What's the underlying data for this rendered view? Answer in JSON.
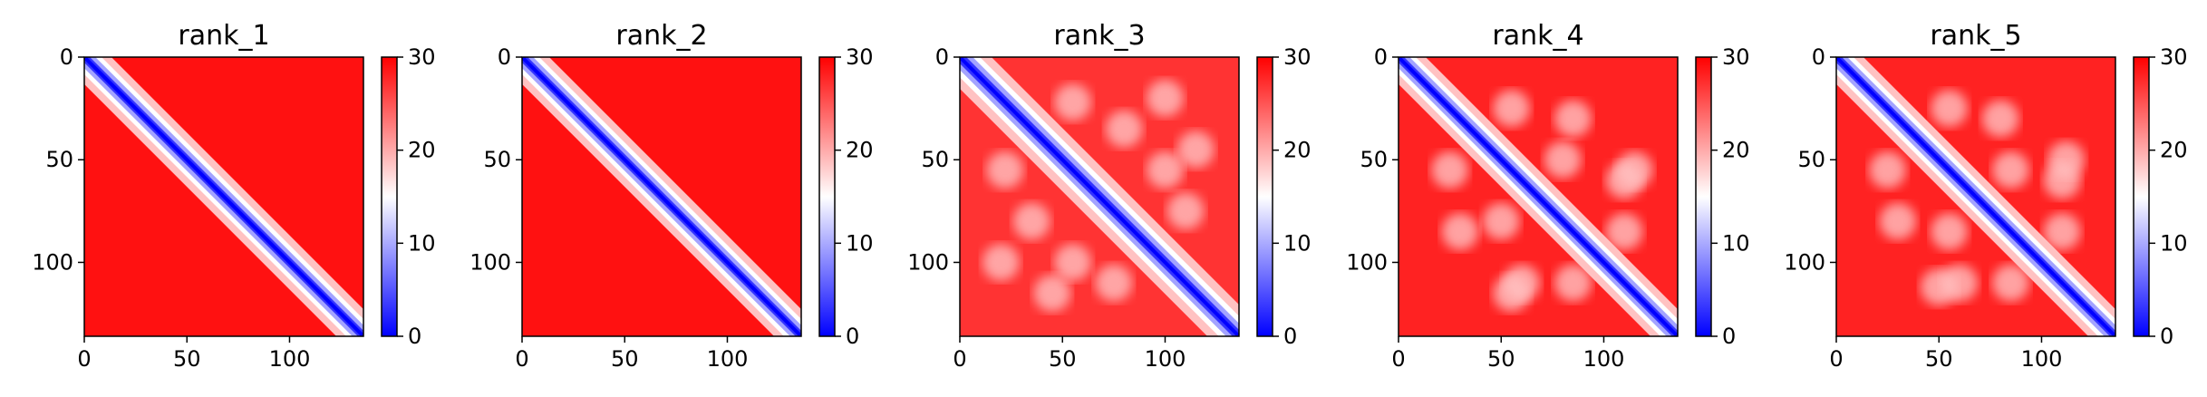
{
  "chart_data": [
    {
      "type": "heatmap",
      "title": "rank_1",
      "xlabel": "",
      "ylabel": "",
      "x_ticks": [
        0,
        50,
        100
      ],
      "y_ticks": [
        0,
        50,
        100
      ],
      "xlim": [
        0,
        136
      ],
      "ylim": [
        136,
        0
      ],
      "matrix_size": 136,
      "colorbar": {
        "min": 0,
        "max": 30,
        "ticks": [
          0,
          10,
          20,
          30
        ],
        "colormap": "bwr"
      },
      "diagonal_value": 0,
      "band_width": 6,
      "background_value": 29,
      "feature_blocks": [],
      "grid": false
    },
    {
      "type": "heatmap",
      "title": "rank_2",
      "xlabel": "",
      "ylabel": "",
      "x_ticks": [
        0,
        50,
        100
      ],
      "y_ticks": [
        0,
        50,
        100
      ],
      "xlim": [
        0,
        136
      ],
      "ylim": [
        136,
        0
      ],
      "matrix_size": 136,
      "colorbar": {
        "min": 0,
        "max": 30,
        "ticks": [
          0,
          10,
          20,
          30
        ],
        "colormap": "bwr"
      },
      "diagonal_value": 0,
      "band_width": 6,
      "background_value": 29,
      "feature_blocks": [],
      "grid": false
    },
    {
      "type": "heatmap",
      "title": "rank_3",
      "xlabel": "",
      "ylabel": "",
      "x_ticks": [
        0,
        50,
        100
      ],
      "y_ticks": [
        0,
        50,
        100
      ],
      "xlim": [
        0,
        136
      ],
      "ylim": [
        136,
        0
      ],
      "matrix_size": 136,
      "colorbar": {
        "min": 0,
        "max": 30,
        "ticks": [
          0,
          10,
          20,
          30
        ],
        "colormap": "bwr"
      },
      "diagonal_value": 0,
      "band_width": 7,
      "background_value": 27,
      "feature_blocks": [
        [
          22,
          55
        ],
        [
          35,
          80
        ],
        [
          55,
          100
        ],
        [
          75,
          110
        ],
        [
          20,
          100
        ],
        [
          45,
          115
        ]
      ],
      "grid": false
    },
    {
      "type": "heatmap",
      "title": "rank_4",
      "xlabel": "",
      "ylabel": "",
      "x_ticks": [
        0,
        50,
        100
      ],
      "y_ticks": [
        0,
        50,
        100
      ],
      "xlim": [
        0,
        136
      ],
      "ylim": [
        136,
        0
      ],
      "matrix_size": 136,
      "colorbar": {
        "min": 0,
        "max": 30,
        "ticks": [
          0,
          10,
          20,
          30
        ],
        "colormap": "bwr"
      },
      "diagonal_value": 0,
      "band_width": 6,
      "background_value": 28,
      "feature_blocks": [
        [
          25,
          55
        ],
        [
          50,
          80
        ],
        [
          30,
          85
        ],
        [
          60,
          110
        ],
        [
          85,
          110
        ],
        [
          55,
          115
        ]
      ],
      "grid": false
    },
    {
      "type": "heatmap",
      "title": "rank_5",
      "xlabel": "",
      "ylabel": "",
      "x_ticks": [
        0,
        50,
        100
      ],
      "y_ticks": [
        0,
        50,
        100
      ],
      "xlim": [
        0,
        136
      ],
      "ylim": [
        136,
        0
      ],
      "matrix_size": 136,
      "colorbar": {
        "min": 0,
        "max": 30,
        "ticks": [
          0,
          10,
          20,
          30
        ],
        "colormap": "bwr"
      },
      "diagonal_value": 0,
      "band_width": 6,
      "background_value": 28,
      "feature_blocks": [
        [
          25,
          55
        ],
        [
          55,
          85
        ],
        [
          30,
          80
        ],
        [
          60,
          110
        ],
        [
          85,
          110
        ],
        [
          50,
          112
        ]
      ],
      "grid": false
    }
  ]
}
